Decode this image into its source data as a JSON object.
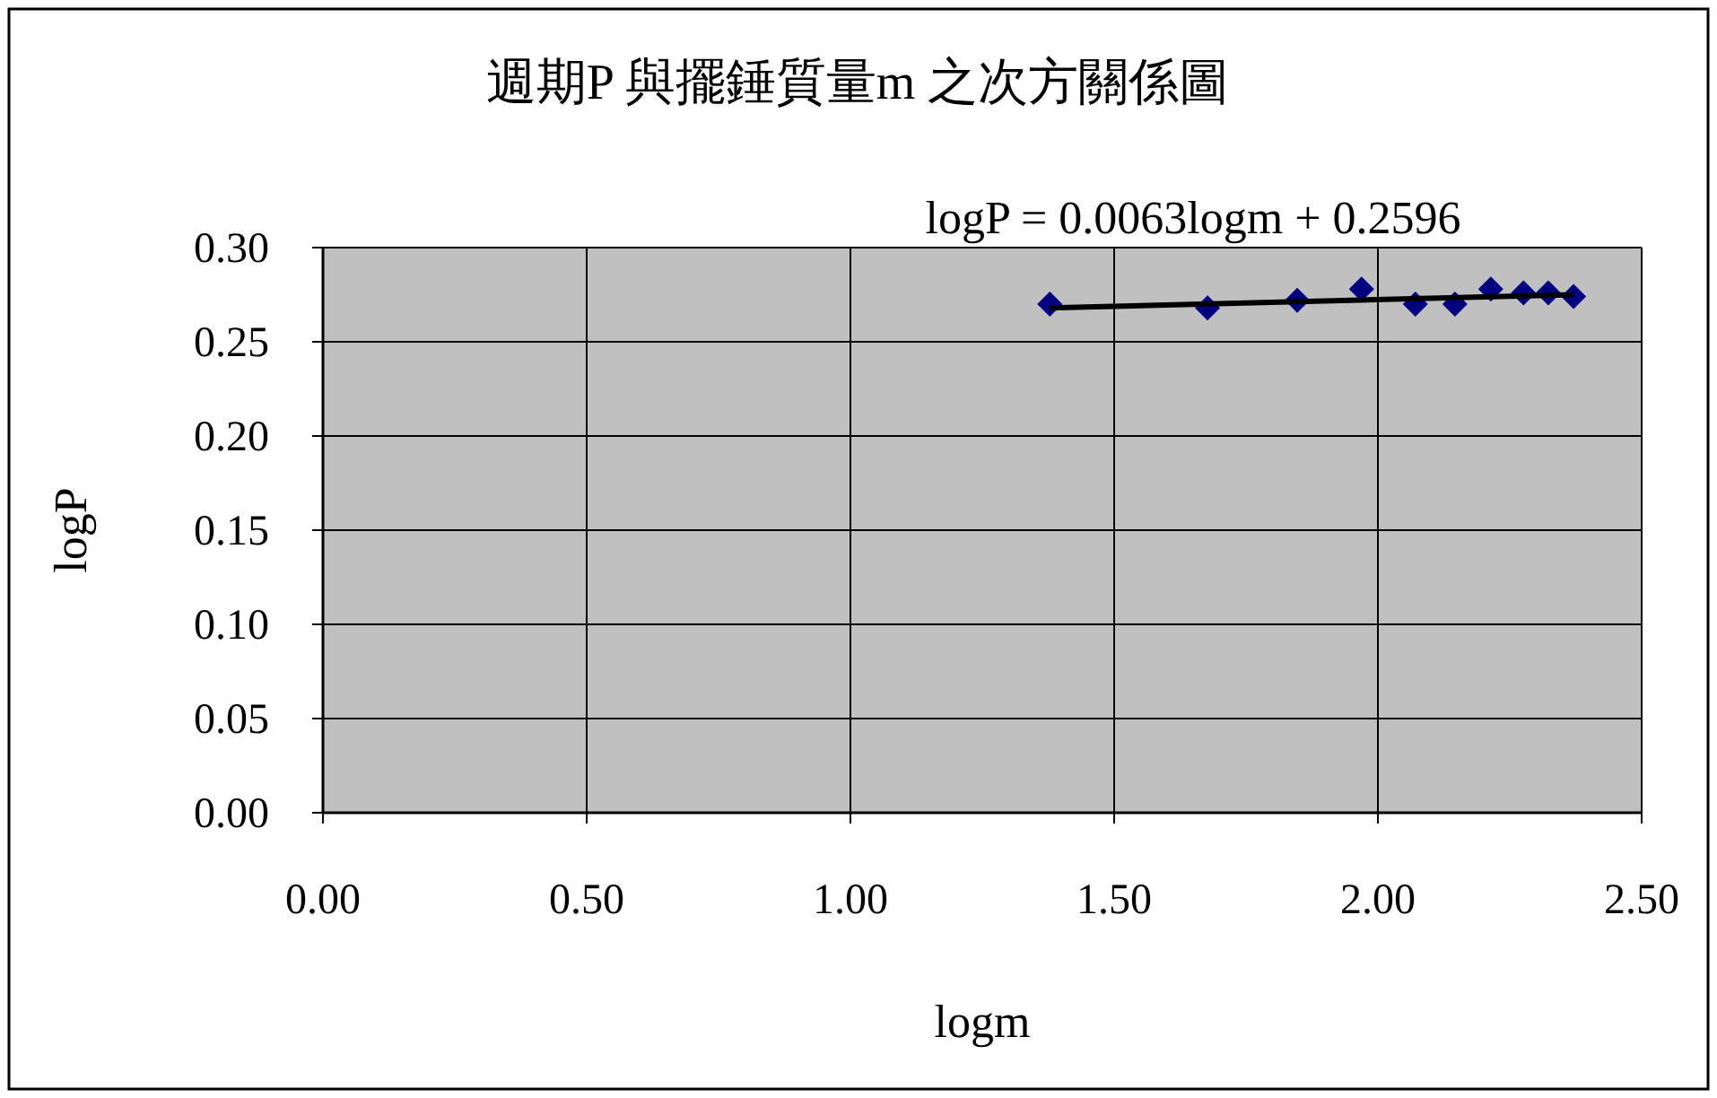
{
  "chart_data": {
    "type": "scatter",
    "title": "週期P 與擺錘質量m 之次方關係圖",
    "xlabel": "logm",
    "ylabel": "logP",
    "annotations": [
      "logP = 0.0063logm + 0.2596"
    ],
    "xlim": [
      0,
      2.5
    ],
    "ylim": [
      0,
      0.3
    ],
    "xticks": [
      {
        "value": 0,
        "label": "0.00"
      },
      {
        "value": 0.5,
        "label": "0.50"
      },
      {
        "value": 1,
        "label": "1.00"
      },
      {
        "value": 1.5,
        "label": "1.50"
      },
      {
        "value": 2,
        "label": "2.00"
      },
      {
        "value": 2.5,
        "label": "2.50"
      }
    ],
    "yticks": [
      {
        "value": 0,
        "label": "0.00"
      },
      {
        "value": 0.05,
        "label": "0.05"
      },
      {
        "value": 0.1,
        "label": "0.10"
      },
      {
        "value": 0.15,
        "label": "0.15"
      },
      {
        "value": 0.2,
        "label": "0.20"
      },
      {
        "value": 0.25,
        "label": "0.25"
      },
      {
        "value": 0.3,
        "label": "0.30"
      }
    ],
    "grid": true,
    "marker": "diamond",
    "series": [
      {
        "color": "#000080",
        "x": [
          1.378,
          1.677,
          1.847,
          1.969,
          2.071,
          2.146,
          2.214,
          2.276,
          2.323,
          2.371
        ],
        "values": [
          0.27,
          0.268,
          0.272,
          0.278,
          0.27,
          0.27,
          0.278,
          0.276,
          0.276,
          0.274
        ]
      },
      {
        "type": "line",
        "marker": "none",
        "color": "#000000",
        "x": [
          1.378,
          2.371
        ],
        "values": [
          0.268,
          0.275
        ]
      }
    ]
  }
}
